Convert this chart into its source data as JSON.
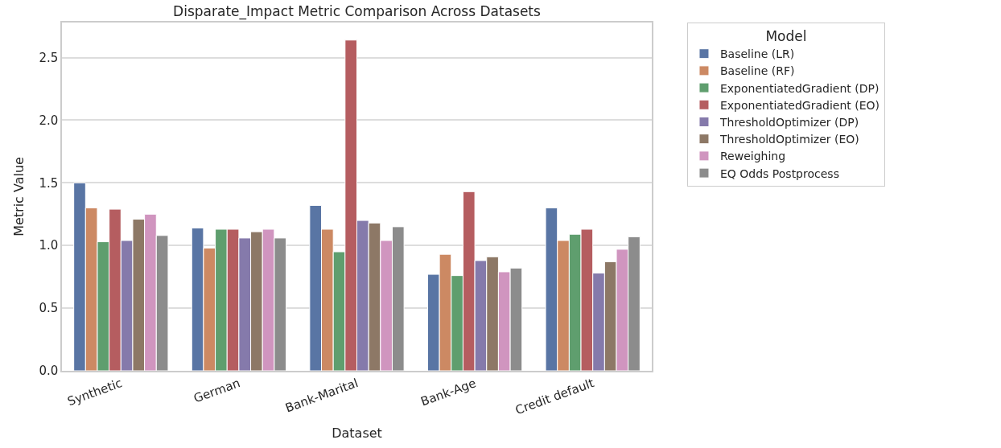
{
  "chart_data": {
    "type": "bar",
    "title": "Disparate_Impact Metric Comparison Across Datasets",
    "xlabel": "Dataset",
    "ylabel": "Metric Value",
    "legend_title": "Model",
    "categories": [
      "Synthetic",
      "German",
      "Bank-Marital",
      "Bank-Age",
      "Credit default"
    ],
    "series": [
      {
        "name": "Baseline (LR)",
        "color": "#5975a4",
        "values": [
          1.5,
          1.14,
          1.32,
          0.77,
          1.3
        ]
      },
      {
        "name": "Baseline (RF)",
        "color": "#cc8963",
        "values": [
          1.3,
          0.98,
          1.13,
          0.93,
          1.04
        ]
      },
      {
        "name": "ExponentiatedGradient (DP)",
        "color": "#5f9e6e",
        "values": [
          1.03,
          1.13,
          0.95,
          0.76,
          1.09
        ]
      },
      {
        "name": "ExponentiatedGradient (EO)",
        "color": "#b55d60",
        "values": [
          1.29,
          1.13,
          2.64,
          1.43,
          1.13
        ]
      },
      {
        "name": "ThresholdOptimizer (DP)",
        "color": "#857aab",
        "values": [
          1.04,
          1.06,
          1.2,
          0.88,
          0.78
        ]
      },
      {
        "name": "ThresholdOptimizer (EO)",
        "color": "#8d7866",
        "values": [
          1.21,
          1.11,
          1.18,
          0.91,
          0.87
        ]
      },
      {
        "name": "Reweighing",
        "color": "#d095bf",
        "values": [
          1.25,
          1.13,
          1.04,
          0.79,
          0.97
        ]
      },
      {
        "name": "EQ Odds Postprocess",
        "color": "#8c8c8c",
        "values": [
          1.08,
          1.06,
          1.15,
          0.82,
          1.07
        ]
      }
    ],
    "ylim": [
      0,
      2.78
    ],
    "yticks": [
      {
        "value": 0,
        "label": "0.0"
      },
      {
        "value": 0.5,
        "label": "0.5"
      },
      {
        "value": 1,
        "label": "1.0"
      },
      {
        "value": 1.5,
        "label": "1.5"
      },
      {
        "value": 2,
        "label": "2.0"
      },
      {
        "value": 2.5,
        "label": "2.5"
      }
    ],
    "grid": "y",
    "legend": "top right"
  }
}
